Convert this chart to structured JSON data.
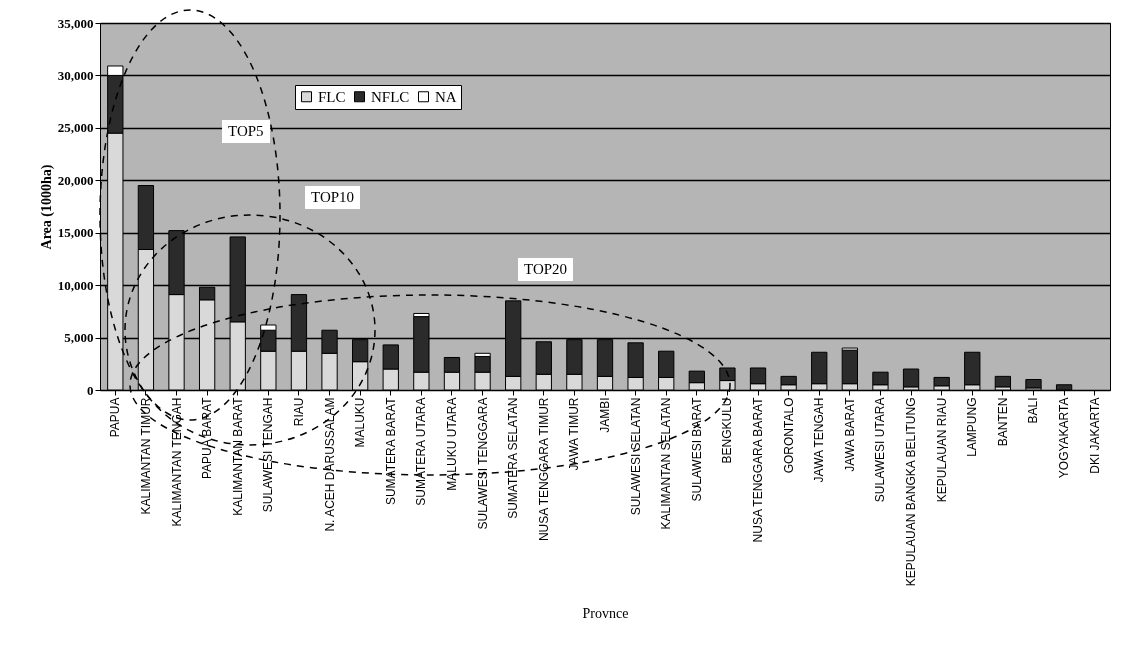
{
  "chart_data": {
    "type": "bar",
    "stacked": true,
    "xlabel": "Provnce",
    "ylabel": "Area (1000ha)",
    "categories": [
      "PAPUA",
      "KALIMANTAN TIMUR",
      "KALIMANTAN TENGAH",
      "PAPUA BARAT",
      "KALIMANTAN BARAT",
      "SULAWESI TENGAH",
      "RIAU",
      "N. ACEH DARUSSALAM",
      "MALUKU",
      "SUMATERA BARAT",
      "SUMATERA UTARA",
      "MALUKU UTARA",
      "SULAWESI TENGGARA",
      "SUMATERA SELATAN",
      "NUSA TENGGARA TIMUR",
      "JAWA TIMUR",
      "JAMBI",
      "SULAWESI SELATAN",
      "KALIMANTAN SELATAN",
      "SULAWESI BARAT",
      "BENGKULU",
      "NUSA TENGGARA BARAT",
      "GORONTALO",
      "JAWA TENGAH",
      "JAWA BARAT",
      "SULAWESI UTARA",
      "KEPULAUAN BANGKA BELITUNG",
      "KEPULAUAN RIAU",
      "LAMPUNG",
      "BANTEN",
      "BALI",
      "YOGYAKARTA",
      "DKI JAKARTA"
    ],
    "series": [
      {
        "name": "FLC",
        "color": "#d9d9d9",
        "values": [
          24500,
          13400,
          9100,
          8600,
          6500,
          3700,
          3700,
          3500,
          2700,
          2000,
          1700,
          1700,
          1700,
          1300,
          1500,
          1500,
          1300,
          1200,
          1200,
          700,
          900,
          600,
          500,
          600,
          600,
          500,
          300,
          400,
          500,
          300,
          200,
          null,
          null
        ]
      },
      {
        "name": "NFLC",
        "color": "#2b2b2b",
        "values": [
          5500,
          6100,
          6100,
          1200,
          8100,
          2000,
          5400,
          2200,
          2100,
          2300,
          5300,
          1400,
          1500,
          7200,
          3100,
          3300,
          3500,
          3300,
          2500,
          1100,
          1200,
          1500,
          800,
          3000,
          3200,
          1200,
          1700,
          800,
          3100,
          1000,
          800,
          500,
          null
        ]
      },
      {
        "name": "NA",
        "color": "#ffffff",
        "values": [
          900,
          null,
          null,
          null,
          null,
          500,
          null,
          null,
          null,
          null,
          300,
          null,
          300,
          null,
          null,
          null,
          null,
          null,
          null,
          null,
          null,
          null,
          null,
          null,
          200,
          null,
          null,
          null,
          null,
          null,
          null,
          null,
          null
        ]
      }
    ],
    "ylim": [
      0,
      35000
    ],
    "yticks": [
      0,
      {
        "value": 5000,
        "label": "5,000"
      },
      {
        "value": 10000,
        "label": "10,000"
      },
      {
        "value": 15000,
        "label": "15,000"
      },
      {
        "value": 20000,
        "label": "20,000"
      },
      {
        "value": 25000,
        "label": "25,000"
      },
      {
        "value": 30000,
        "label": "30,000"
      },
      {
        "value": 35000,
        "label": "35,000"
      }
    ],
    "grid": "y",
    "legend": "top",
    "annotations": [
      "TOP5",
      "TOP10",
      "TOP20"
    ]
  }
}
